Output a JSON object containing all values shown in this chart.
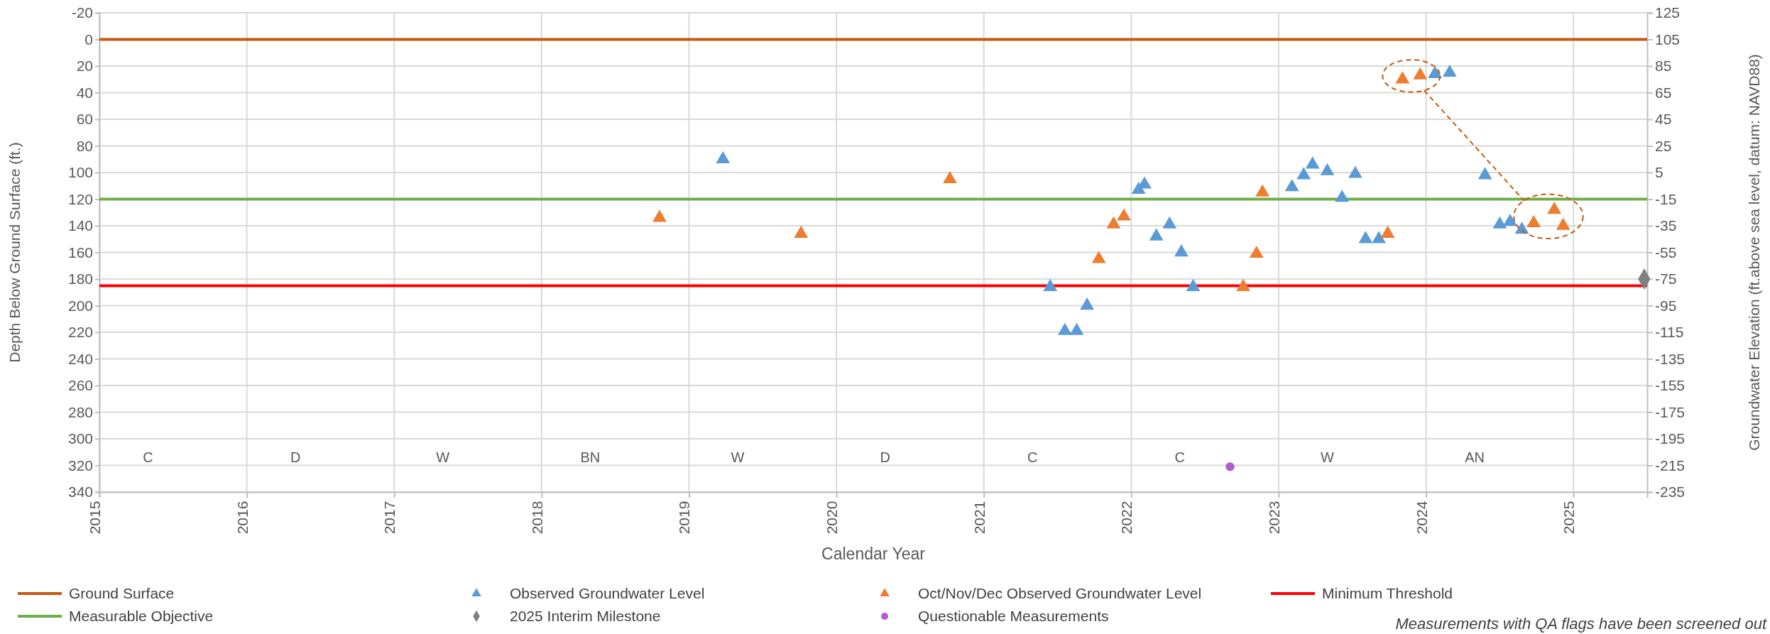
{
  "chart_data": {
    "type": "scatter",
    "xlabel": "Calendar Year",
    "ylabel": "Depth Below Ground Surface  (ft.)",
    "y2label": "Groundwater Elevation (ft.above sea level, datum: NAVD88)",
    "xlim": [
      2015,
      2025.5
    ],
    "xticks": [
      2015,
      2016,
      2017,
      2018,
      2019,
      2020,
      2021,
      2022,
      2023,
      2024,
      2025
    ],
    "ylim": [
      340,
      -20
    ],
    "yticks": [
      -20,
      0,
      20,
      40,
      60,
      80,
      100,
      120,
      140,
      160,
      180,
      200,
      220,
      240,
      260,
      280,
      300,
      320,
      340
    ],
    "y2lim": [
      -235,
      125
    ],
    "y2ticks": [
      125,
      105,
      85,
      65,
      45,
      25,
      5,
      -15,
      -35,
      -55,
      -75,
      -95,
      -115,
      -135,
      -155,
      -175,
      -195,
      -215,
      -235
    ],
    "grid": true,
    "legend": "bottom",
    "series": [
      {
        "name": "Observed Groundwater Level",
        "color": "#5b9bd5",
        "marker": "triangle",
        "x": [
          2019.23,
          2021.45,
          2021.55,
          2021.63,
          2021.7,
          2022.05,
          2022.09,
          2022.17,
          2022.26,
          2022.34,
          2022.42,
          2023.09,
          2023.17,
          2023.23,
          2023.33,
          2023.43,
          2023.52,
          2023.59,
          2023.68,
          2024.06,
          2024.16,
          2024.4,
          2024.5,
          2024.57,
          2024.65
        ],
        "values": [
          90,
          186,
          219,
          219,
          200,
          113,
          109,
          148,
          139,
          160,
          186,
          111,
          102,
          94,
          99,
          119,
          101,
          150,
          150,
          26,
          25,
          102,
          139,
          137,
          143
        ]
      },
      {
        "name": "Oct/Nov/Dec Observed Groundwater Level",
        "color": "#ed7d31",
        "marker": "triangle",
        "x": [
          2018.8,
          2019.76,
          2020.77,
          2021.78,
          2021.88,
          2021.95,
          2022.76,
          2022.85,
          2022.89,
          2023.74,
          2023.84,
          2023.96,
          2024.73,
          2024.87,
          2024.93
        ],
        "values": [
          134,
          146,
          105,
          165,
          139,
          133,
          186,
          161,
          115,
          146,
          30,
          27,
          138,
          128,
          140
        ]
      },
      {
        "name": "2025 Interim Milestone",
        "color": "#7f7f7f",
        "marker": "diamond",
        "x": [
          2025.48
        ],
        "values": [
          180
        ]
      },
      {
        "name": "Questionable Measurements",
        "color": "#b05cd0",
        "marker": "circle",
        "x": [
          2022.67
        ],
        "values": [
          321
        ]
      }
    ],
    "ref_lines": [
      {
        "axis": "y",
        "value": 0,
        "label": "Ground Surface",
        "color": "#c55a11"
      },
      {
        "axis": "y",
        "value": 120,
        "label": "Measurable Objective",
        "color": "#70ad47"
      },
      {
        "axis": "y",
        "value": 185,
        "label": "Minimum Threshold",
        "color": "#ff0000"
      }
    ],
    "annotations": [
      "C",
      "D",
      "W",
      "BN",
      "W",
      "D",
      "C",
      "C",
      "W",
      "AN",
      "Measurements with QA flags have been screened out"
    ]
  }
}
